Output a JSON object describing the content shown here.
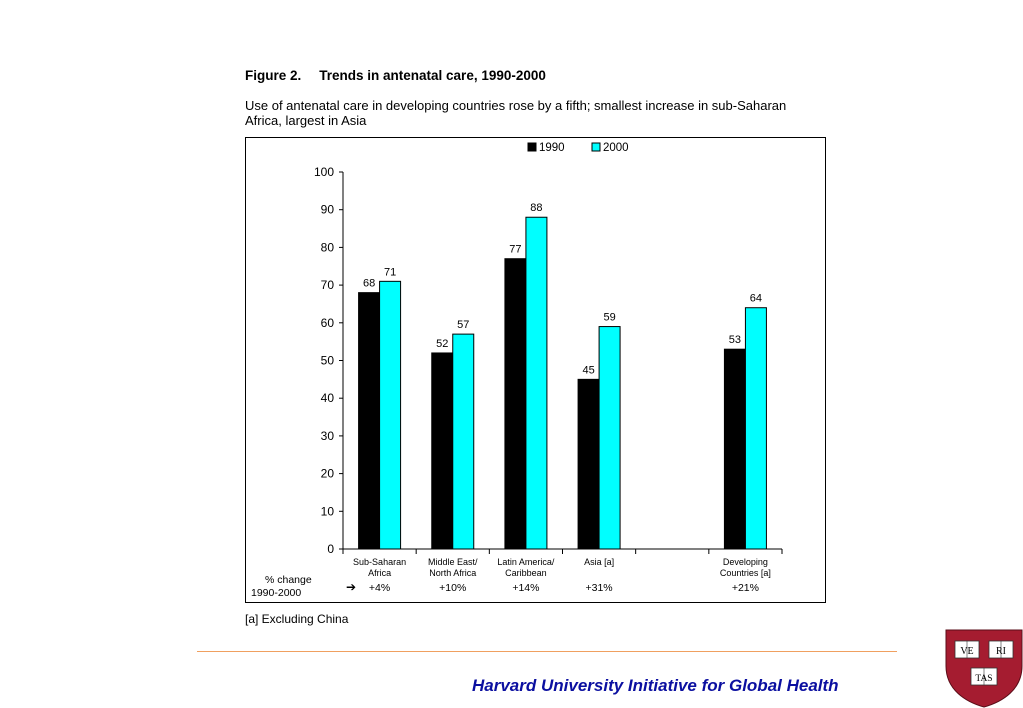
{
  "figure": {
    "number": "Figure 2.",
    "title": "Trends in antenatal care, 1990-2000",
    "subtitle": "Use of antenatal care in developing countries rose by a fifth; smallest increase in sub-Saharan Africa, largest in Asia"
  },
  "footnote": "[a] Excluding China",
  "footer": {
    "org_name": "Harvard University Initiative for Global Health",
    "crest": {
      "letters": [
        "VE",
        "RI",
        "TAS"
      ],
      "color": "#a51c30"
    }
  },
  "chart_data": {
    "type": "bar",
    "categories": [
      [
        "Sub-Saharan",
        "Africa"
      ],
      [
        "Middle East/",
        "North Africa"
      ],
      [
        "Latin America/",
        "Caribbean"
      ],
      [
        "Asia [a]"
      ],
      [],
      [
        "Developing",
        "Countries [a]"
      ]
    ],
    "series": [
      {
        "name": "1990",
        "color": "#000000",
        "values": [
          68,
          52,
          77,
          45,
          null,
          53
        ]
      },
      {
        "name": "2000",
        "color": "#00ffff",
        "values": [
          71,
          57,
          88,
          59,
          null,
          64
        ]
      }
    ],
    "ylim": [
      0,
      100
    ],
    "yticks": [
      0,
      10,
      20,
      30,
      40,
      50,
      60,
      70,
      80,
      90,
      100
    ],
    "change_label": [
      "% change",
      "1990-2000"
    ],
    "change_arrow": "➔",
    "changes": [
      "+4%",
      "+10%",
      "+14%",
      "+31%",
      "",
      "+21%"
    ],
    "legend_position": "top-center",
    "grid": false
  }
}
